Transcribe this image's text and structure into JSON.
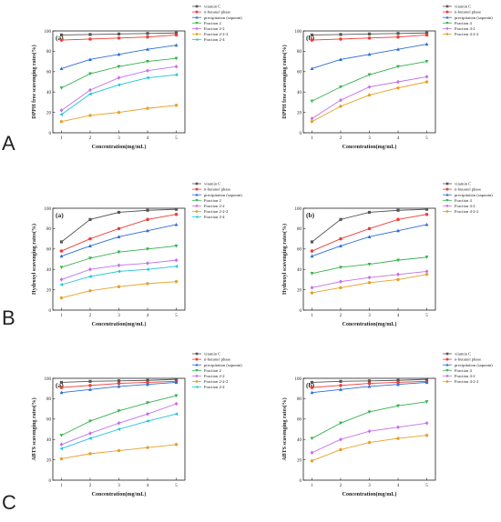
{
  "colors": {
    "vitamin_c": "#555555",
    "n_butanol": "#ef3b34",
    "precipitation": "#2f6ed7",
    "fraction2": "#35b24d",
    "fraction22": "#c271e6",
    "fraction222": "#e6a126",
    "fraction24": "#20c4d8",
    "fraction4": "#35b24d",
    "fraction42": "#c271e6",
    "fraction422": "#e6a126"
  },
  "chart_data": [
    {
      "type": "line",
      "row": "A",
      "panel": "(a)",
      "xlabel": "Concentration(mg/mL)",
      "ylabel": "DPPH free scavenging rates(%)",
      "x": [
        1,
        2,
        3,
        4,
        5
      ],
      "ylim": [
        0,
        100
      ],
      "yticks": [
        0,
        20,
        40,
        60,
        80,
        100
      ],
      "legend_position": "top-right",
      "series": [
        {
          "name": "vitamin C",
          "color_key": "vitamin_c",
          "marker": "square",
          "values": [
            96,
            96.5,
            97,
            97.5,
            98
          ]
        },
        {
          "name": "n-butanol phase",
          "color_key": "n_butanol",
          "marker": "circle",
          "values": [
            91,
            92,
            93,
            94,
            96
          ]
        },
        {
          "name": "precipitation (saponin)",
          "color_key": "precipitation",
          "marker": "triangle-up",
          "values": [
            63,
            72,
            77,
            82,
            86
          ]
        },
        {
          "name": "Fraction 2",
          "color_key": "fraction2",
          "marker": "triangle-down",
          "values": [
            44,
            58,
            65,
            70,
            73
          ]
        },
        {
          "name": "Fraction 2-2",
          "color_key": "fraction22",
          "marker": "diamond",
          "values": [
            22,
            42,
            54,
            61,
            65
          ]
        },
        {
          "name": "Fraction 2-2-2",
          "color_key": "fraction222",
          "marker": "pentagon",
          "values": [
            11,
            17,
            20,
            24,
            27
          ]
        },
        {
          "name": "Fraction 2-4",
          "color_key": "fraction24",
          "marker": "triangle-left",
          "values": [
            18,
            38,
            47,
            54,
            57
          ]
        }
      ]
    },
    {
      "type": "line",
      "row": "A",
      "panel": "(b)",
      "xlabel": "Concentration(mg/mL)",
      "ylabel": "DPPH free scavenging rates(%)",
      "x": [
        1,
        2,
        3,
        4,
        5
      ],
      "ylim": [
        0,
        100
      ],
      "yticks": [
        0,
        20,
        40,
        60,
        80,
        100
      ],
      "legend_position": "top-right",
      "series": [
        {
          "name": "vitamin C",
          "color_key": "vitamin_c",
          "marker": "square",
          "values": [
            96,
            96.5,
            97,
            97.5,
            98
          ]
        },
        {
          "name": "n-butanol phase",
          "color_key": "n_butanol",
          "marker": "circle",
          "values": [
            91,
            92,
            93,
            94,
            96
          ]
        },
        {
          "name": "precipitation (saponin)",
          "color_key": "precipitation",
          "marker": "triangle-up",
          "values": [
            63,
            72,
            77,
            82,
            87
          ]
        },
        {
          "name": "Fraction 4",
          "color_key": "fraction4",
          "marker": "triangle-down",
          "values": [
            31,
            45,
            57,
            65,
            70
          ]
        },
        {
          "name": "Fraction 4-2",
          "color_key": "fraction42",
          "marker": "diamond",
          "values": [
            14,
            32,
            45,
            50,
            55
          ]
        },
        {
          "name": "Fraction 4-2-2",
          "color_key": "fraction422",
          "marker": "pentagon",
          "values": [
            11,
            26,
            37,
            44,
            50
          ]
        }
      ]
    },
    {
      "type": "line",
      "row": "B",
      "panel": "(a)",
      "xlabel": "Concentration(mg/mL)",
      "ylabel": "Hydroxyl scavenging rates(%)",
      "x": [
        1,
        2,
        3,
        4,
        5
      ],
      "ylim": [
        0,
        100
      ],
      "yticks": [
        0,
        20,
        40,
        60,
        80,
        100
      ],
      "legend_position": "top-right",
      "series": [
        {
          "name": "vitamin C",
          "color_key": "vitamin_c",
          "marker": "square",
          "values": [
            67,
            89,
            96,
            98,
            99
          ]
        },
        {
          "name": "n-butanol phase",
          "color_key": "n_butanol",
          "marker": "circle",
          "values": [
            58,
            70,
            80,
            89,
            94
          ]
        },
        {
          "name": "precipitation (saponin)",
          "color_key": "precipitation",
          "marker": "triangle-up",
          "values": [
            53,
            63,
            72,
            78,
            84
          ]
        },
        {
          "name": "Fraction 2",
          "color_key": "fraction2",
          "marker": "triangle-down",
          "values": [
            42,
            51,
            57,
            60,
            63
          ]
        },
        {
          "name": "Fraction 2-2",
          "color_key": "fraction22",
          "marker": "diamond",
          "values": [
            30,
            40,
            44,
            46,
            49
          ]
        },
        {
          "name": "Fraction 2-2-2",
          "color_key": "fraction222",
          "marker": "pentagon",
          "values": [
            12,
            19,
            23,
            26,
            28
          ]
        },
        {
          "name": "Fraction 2-4",
          "color_key": "fraction24",
          "marker": "triangle-left",
          "values": [
            25,
            33,
            38,
            40,
            43
          ]
        }
      ]
    },
    {
      "type": "line",
      "row": "B",
      "panel": "(b)",
      "xlabel": "Concentration(mg/mL)",
      "ylabel": "Hydroxyl scavenging rates(%)",
      "x": [
        1,
        2,
        3,
        4,
        5
      ],
      "ylim": [
        0,
        100
      ],
      "yticks": [
        0,
        20,
        40,
        60,
        80,
        100
      ],
      "legend_position": "top-right",
      "series": [
        {
          "name": "vitamin C",
          "color_key": "vitamin_c",
          "marker": "square",
          "values": [
            67,
            89,
            96,
            98,
            99
          ]
        },
        {
          "name": "n-butanol phase",
          "color_key": "n_butanol",
          "marker": "circle",
          "values": [
            58,
            70,
            80,
            89,
            94
          ]
        },
        {
          "name": "precipitation (saponin)",
          "color_key": "precipitation",
          "marker": "triangle-up",
          "values": [
            53,
            63,
            72,
            78,
            84
          ]
        },
        {
          "name": "Fraction 4",
          "color_key": "fraction4",
          "marker": "triangle-down",
          "values": [
            36,
            42,
            45,
            49,
            52
          ]
        },
        {
          "name": "Fraction 4-2",
          "color_key": "fraction42",
          "marker": "diamond",
          "values": [
            22,
            28,
            32,
            35,
            38
          ]
        },
        {
          "name": "Fraction 4-2-2",
          "color_key": "fraction422",
          "marker": "pentagon",
          "values": [
            17,
            22,
            27,
            30,
            35
          ]
        }
      ]
    },
    {
      "type": "line",
      "row": "C",
      "panel": "(a)",
      "xlabel": "Concentration(mg/mL)",
      "ylabel": "ABTS scavenging rates(%)",
      "x": [
        1,
        2,
        3,
        4,
        5
      ],
      "ylim": [
        0,
        100
      ],
      "yticks": [
        0,
        20,
        40,
        60,
        80,
        100
      ],
      "legend_position": "top-right",
      "series": [
        {
          "name": "vitamin C",
          "color_key": "vitamin_c",
          "marker": "square",
          "values": [
            96,
            97,
            97.5,
            98,
            99
          ]
        },
        {
          "name": "n-butanol phase",
          "color_key": "n_butanol",
          "marker": "circle",
          "values": [
            91,
            93,
            95,
            96,
            97
          ]
        },
        {
          "name": "precipitation (saponin)",
          "color_key": "precipitation",
          "marker": "triangle-up",
          "values": [
            86,
            89,
            92,
            94,
            96
          ]
        },
        {
          "name": "Fraction 2",
          "color_key": "fraction2",
          "marker": "triangle-down",
          "values": [
            44,
            58,
            68,
            76,
            83
          ]
        },
        {
          "name": "Fraction 2-2",
          "color_key": "fraction22",
          "marker": "diamond",
          "values": [
            35,
            46,
            56,
            65,
            75
          ]
        },
        {
          "name": "Fraction 2-2-2",
          "color_key": "fraction222",
          "marker": "pentagon",
          "values": [
            21,
            26,
            29,
            32,
            35
          ]
        },
        {
          "name": "Fraction 2-4",
          "color_key": "fraction24",
          "marker": "triangle-left",
          "values": [
            31,
            41,
            50,
            58,
            65
          ]
        }
      ]
    },
    {
      "type": "line",
      "row": "C",
      "panel": "(b)",
      "xlabel": "Concentration(mg/mL)",
      "ylabel": "ABTS scavenging rates(%)",
      "x": [
        1,
        2,
        3,
        4,
        5
      ],
      "ylim": [
        0,
        100
      ],
      "yticks": [
        0,
        20,
        40,
        60,
        80,
        100
      ],
      "legend_position": "top-right",
      "series": [
        {
          "name": "vitamin C",
          "color_key": "vitamin_c",
          "marker": "square",
          "values": [
            96,
            97,
            97.5,
            98,
            99
          ]
        },
        {
          "name": "n-butanol phase",
          "color_key": "n_butanol",
          "marker": "circle",
          "values": [
            91,
            93,
            95,
            96,
            97
          ]
        },
        {
          "name": "precipitation (saponin)",
          "color_key": "precipitation",
          "marker": "triangle-up",
          "values": [
            86,
            89,
            92,
            94,
            96
          ]
        },
        {
          "name": "Fraction 4",
          "color_key": "fraction4",
          "marker": "triangle-down",
          "values": [
            41,
            56,
            67,
            73,
            77
          ]
        },
        {
          "name": "Fraction 4-2",
          "color_key": "fraction42",
          "marker": "diamond",
          "values": [
            27,
            40,
            48,
            52,
            56
          ]
        },
        {
          "name": "Fraction 4-2-2",
          "color_key": "fraction422",
          "marker": "pentagon",
          "values": [
            19,
            30,
            37,
            41,
            44
          ]
        }
      ]
    }
  ]
}
